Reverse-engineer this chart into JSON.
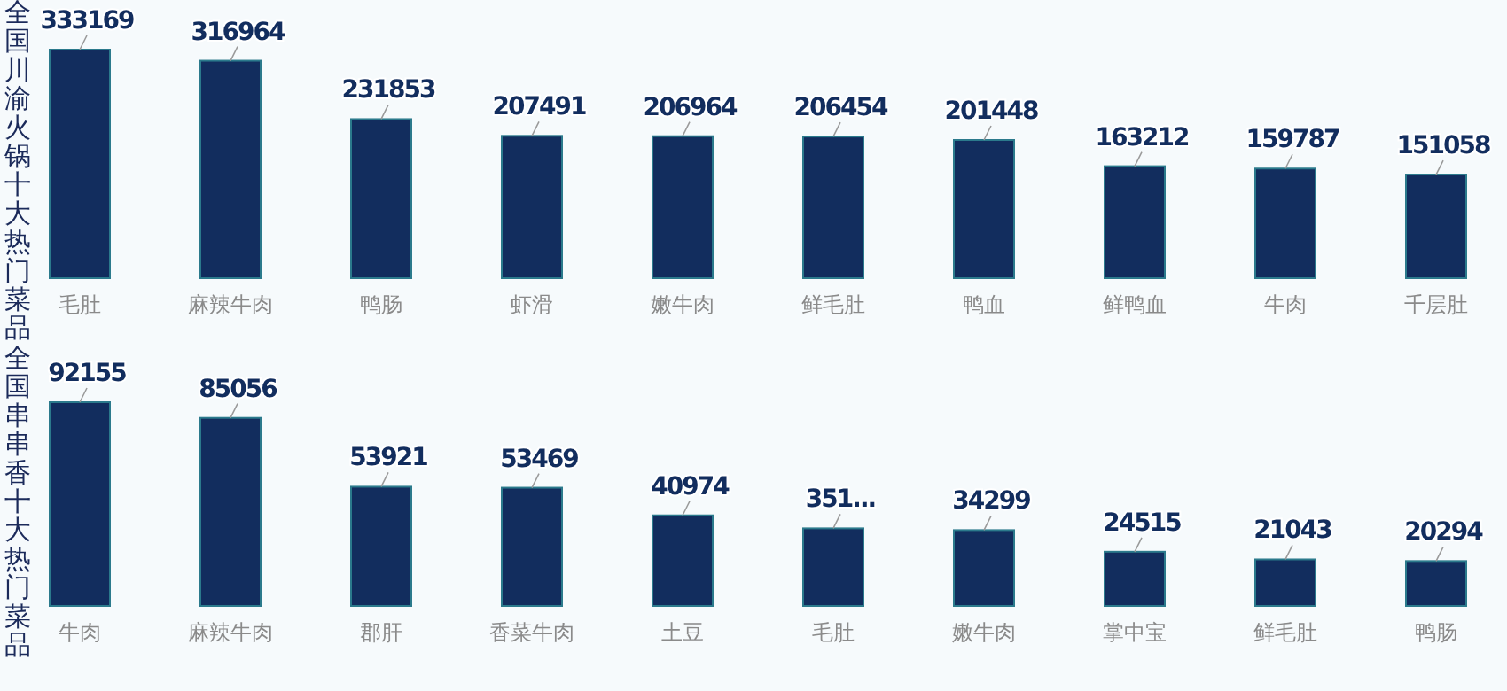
{
  "chart_data": [
    {
      "type": "bar",
      "title": "全国川渝火锅十大热门菜品",
      "categories": [
        "毛肚",
        "麻辣牛肉",
        "鸭肠",
        "虾滑",
        "嫩牛肉",
        "鲜毛肚",
        "鸭血",
        "鲜鸭血",
        "牛肉",
        "千层肚"
      ],
      "values": [
        333169,
        316964,
        231853,
        207491,
        206964,
        206454,
        201448,
        163212,
        159787,
        151058
      ],
      "color": "#122d5e",
      "data_labels": true
    },
    {
      "type": "bar",
      "title": "全国串串香十大热门菜品",
      "categories": [
        "牛肉",
        "麻辣牛肉",
        "郡肝",
        "香菜牛肉",
        "土豆",
        "毛肚",
        "嫩牛肉",
        "掌中宝",
        "鲜毛肚",
        "鸭肠"
      ],
      "values": [
        92155,
        85056,
        53921,
        53469,
        40974,
        35100,
        34299,
        24515,
        21043,
        20294
      ],
      "color": "#122d5e",
      "value_labels": [
        "92155",
        "85056",
        "53921",
        "53469",
        "40974",
        "351...",
        "34299",
        "24515",
        "21043",
        "20294"
      ]
    }
  ]
}
